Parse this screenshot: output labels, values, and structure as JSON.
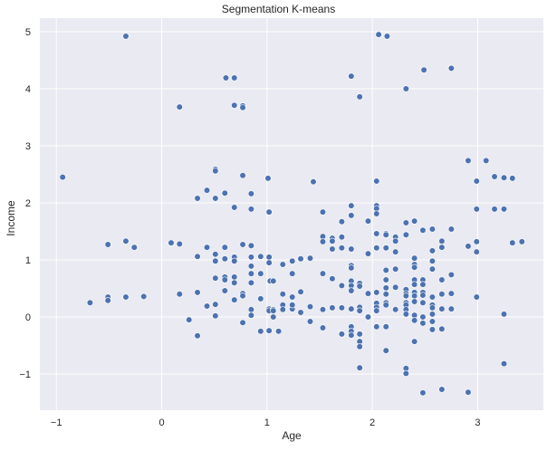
{
  "chart_data": {
    "type": "scatter",
    "title": "Segmentation K-means",
    "xlabel": "Age",
    "ylabel": "Income",
    "xlim": [
      -1.15,
      3.6
    ],
    "ylim": [
      -1.65,
      5.25
    ],
    "xticks": [
      -1,
      0,
      1,
      2,
      3
    ],
    "yticks": [
      -1,
      0,
      1,
      2,
      3,
      4,
      5
    ],
    "xtick_labels": [
      "−1",
      "0",
      "1",
      "2",
      "3"
    ],
    "ytick_labels": [
      "−1",
      "0",
      "1",
      "2",
      "3",
      "4",
      "5"
    ],
    "grid": true,
    "legend": null,
    "colors": {
      "point": "#4c72b0",
      "background": "#eaeaf2",
      "grid": "#ffffff",
      "text": "#262626"
    },
    "points": [
      [
        -0.34,
        4.92
      ],
      [
        0.17,
        3.68
      ],
      [
        0.61,
        4.19
      ],
      [
        0.69,
        4.19
      ],
      [
        0.69,
        3.71
      ],
      [
        0.77,
        3.7
      ],
      [
        0.77,
        3.67
      ],
      [
        1.8,
        4.22
      ],
      [
        1.88,
        3.86
      ],
      [
        2.06,
        4.95
      ],
      [
        2.14,
        4.92
      ],
      [
        2.32,
        4.0
      ],
      [
        2.49,
        4.33
      ],
      [
        2.75,
        4.36
      ],
      [
        -0.94,
        2.45
      ],
      [
        -0.51,
        1.27
      ],
      [
        -0.34,
        1.33
      ],
      [
        -0.26,
        1.22
      ],
      [
        0.09,
        1.3
      ],
      [
        -0.68,
        0.25
      ],
      [
        -0.51,
        0.35
      ],
      [
        -0.51,
        0.29
      ],
      [
        -0.34,
        0.35
      ],
      [
        -0.17,
        0.36
      ],
      [
        0.51,
        2.59
      ],
      [
        0.51,
        2.56
      ],
      [
        0.77,
        2.48
      ],
      [
        1.01,
        2.43
      ],
      [
        0.43,
        2.22
      ],
      [
        0.6,
        2.17
      ],
      [
        0.85,
        2.16
      ],
      [
        0.34,
        2.08
      ],
      [
        0.51,
        2.08
      ],
      [
        0.69,
        1.92
      ],
      [
        0.85,
        1.89
      ],
      [
        1.02,
        1.84
      ],
      [
        0.17,
        1.28
      ],
      [
        0.43,
        1.22
      ],
      [
        0.6,
        1.22
      ],
      [
        0.77,
        1.27
      ],
      [
        0.85,
        1.25
      ],
      [
        0.34,
        1.06
      ],
      [
        0.51,
        1.1
      ],
      [
        0.51,
        0.98
      ],
      [
        0.6,
        1.02
      ],
      [
        0.69,
        1.05
      ],
      [
        0.69,
        0.98
      ],
      [
        0.85,
        1.05
      ],
      [
        0.85,
        0.89
      ],
      [
        0.94,
        1.06
      ],
      [
        1.02,
        1.05
      ],
      [
        1.02,
        0.95
      ],
      [
        0.51,
        0.68
      ],
      [
        0.6,
        0.7
      ],
      [
        0.6,
        0.65
      ],
      [
        0.69,
        0.7
      ],
      [
        0.69,
        0.6
      ],
      [
        0.85,
        0.76
      ],
      [
        0.94,
        0.76
      ],
      [
        0.85,
        0.6
      ],
      [
        1.03,
        0.63
      ],
      [
        0.17,
        0.4
      ],
      [
        0.34,
        0.43
      ],
      [
        0.6,
        0.46
      ],
      [
        0.77,
        0.41
      ],
      [
        0.77,
        0.37
      ],
      [
        0.69,
        0.3
      ],
      [
        0.94,
        0.32
      ],
      [
        0.43,
        0.19
      ],
      [
        0.51,
        0.22
      ],
      [
        0.51,
        0.02
      ],
      [
        0.85,
        0.13
      ],
      [
        0.85,
        0.03
      ],
      [
        0.26,
        -0.05
      ],
      [
        0.77,
        -0.1
      ],
      [
        0.94,
        -0.25
      ],
      [
        1.02,
        -0.24
      ],
      [
        1.11,
        -0.25
      ],
      [
        0.34,
        -0.33
      ],
      [
        1.02,
        0.14
      ],
      [
        1.02,
        0.11
      ],
      [
        1.44,
        2.37
      ],
      [
        2.04,
        2.38
      ],
      [
        1.8,
        1.95
      ],
      [
        2.04,
        1.95
      ],
      [
        2.04,
        1.9
      ],
      [
        1.53,
        1.84
      ],
      [
        1.8,
        1.78
      ],
      [
        2.04,
        1.81
      ],
      [
        1.71,
        1.67
      ],
      [
        1.96,
        1.68
      ],
      [
        1.53,
        1.41
      ],
      [
        1.53,
        1.32
      ],
      [
        1.62,
        1.38
      ],
      [
        1.62,
        1.33
      ],
      [
        1.71,
        1.4
      ],
      [
        2.04,
        1.46
      ],
      [
        2.13,
        1.46
      ],
      [
        1.62,
        1.19
      ],
      [
        1.71,
        1.21
      ],
      [
        1.8,
        1.19
      ],
      [
        1.96,
        1.11
      ],
      [
        2.04,
        1.21
      ],
      [
        2.13,
        1.21
      ],
      [
        1.15,
        0.92
      ],
      [
        1.24,
        0.98
      ],
      [
        1.32,
        1.02
      ],
      [
        1.41,
        1.03
      ],
      [
        1.8,
        0.9
      ],
      [
        1.8,
        0.86
      ],
      [
        1.24,
        0.76
      ],
      [
        1.06,
        0.63
      ],
      [
        1.53,
        0.76
      ],
      [
        1.62,
        0.67
      ],
      [
        1.71,
        0.55
      ],
      [
        1.8,
        0.63
      ],
      [
        1.8,
        0.55
      ],
      [
        1.8,
        0.46
      ],
      [
        1.88,
        0.59
      ],
      [
        1.88,
        0.54
      ],
      [
        1.96,
        0.41
      ],
      [
        2.04,
        0.43
      ],
      [
        1.15,
        0.4
      ],
      [
        1.24,
        0.35
      ],
      [
        1.32,
        0.44
      ],
      [
        1.15,
        0.21
      ],
      [
        1.15,
        0.13
      ],
      [
        1.24,
        0.14
      ],
      [
        1.24,
        0.21
      ],
      [
        1.32,
        0.08
      ],
      [
        1.41,
        0.18
      ],
      [
        1.53,
        0.13
      ],
      [
        1.62,
        0.16
      ],
      [
        1.71,
        0.16
      ],
      [
        1.8,
        0.14
      ],
      [
        1.88,
        0.17
      ],
      [
        1.88,
        0.11
      ],
      [
        1.06,
        0.13
      ],
      [
        1.06,
        0.11
      ],
      [
        1.06,
        0.0
      ],
      [
        1.41,
        -0.08
      ],
      [
        1.53,
        -0.19
      ],
      [
        1.71,
        -0.3
      ],
      [
        1.8,
        -0.17
      ],
      [
        1.8,
        -0.25
      ],
      [
        1.8,
        -0.32
      ],
      [
        1.88,
        -0.3
      ],
      [
        1.88,
        -0.43
      ],
      [
        1.88,
        -0.52
      ],
      [
        1.96,
        0.0
      ],
      [
        2.04,
        -0.17
      ],
      [
        2.99,
        2.38
      ],
      [
        2.99,
        1.89
      ],
      [
        2.32,
        1.65
      ],
      [
        2.4,
        1.68
      ],
      [
        2.48,
        1.52
      ],
      [
        2.57,
        1.54
      ],
      [
        2.75,
        1.54
      ],
      [
        2.13,
        1.44
      ],
      [
        2.22,
        1.4
      ],
      [
        2.32,
        1.44
      ],
      [
        2.66,
        1.33
      ],
      [
        2.66,
        1.22
      ],
      [
        2.22,
        1.33
      ],
      [
        2.22,
        1.14
      ],
      [
        2.91,
        1.24
      ],
      [
        2.99,
        1.32
      ],
      [
        2.99,
        1.14
      ],
      [
        2.57,
        1.16
      ],
      [
        2.4,
        1.03
      ],
      [
        2.4,
        0.92
      ],
      [
        2.57,
        0.98
      ],
      [
        2.57,
        0.84
      ],
      [
        2.13,
        0.82
      ],
      [
        2.22,
        0.84
      ],
      [
        2.4,
        0.87
      ],
      [
        2.75,
        0.74
      ],
      [
        2.13,
        0.65
      ],
      [
        2.4,
        0.65
      ],
      [
        2.48,
        0.65
      ],
      [
        2.4,
        0.57
      ],
      [
        2.48,
        0.57
      ],
      [
        2.66,
        0.65
      ],
      [
        2.22,
        0.52
      ],
      [
        2.32,
        0.48
      ],
      [
        2.13,
        0.51
      ],
      [
        2.13,
        0.4
      ],
      [
        2.32,
        0.41
      ],
      [
        2.32,
        0.37
      ],
      [
        2.4,
        0.43
      ],
      [
        2.4,
        0.37
      ],
      [
        2.48,
        0.43
      ],
      [
        2.48,
        0.38
      ],
      [
        2.57,
        0.35
      ],
      [
        2.66,
        0.4
      ],
      [
        2.75,
        0.41
      ],
      [
        2.99,
        0.35
      ],
      [
        2.04,
        0.24
      ],
      [
        2.13,
        0.25
      ],
      [
        2.13,
        0.21
      ],
      [
        2.32,
        0.25
      ],
      [
        2.32,
        0.21
      ],
      [
        2.4,
        0.27
      ],
      [
        2.48,
        0.25
      ],
      [
        2.57,
        0.21
      ],
      [
        2.57,
        0.16
      ],
      [
        2.66,
        0.14
      ],
      [
        2.75,
        0.14
      ],
      [
        2.04,
        0.17
      ],
      [
        2.04,
        0.11
      ],
      [
        2.22,
        0.13
      ],
      [
        2.32,
        0.13
      ],
      [
        2.57,
        0.05
      ],
      [
        2.4,
        0.03
      ],
      [
        2.48,
        0.0
      ],
      [
        2.32,
        0.05
      ],
      [
        2.4,
        -0.06
      ],
      [
        2.48,
        -0.11
      ],
      [
        2.57,
        -0.08
      ],
      [
        2.13,
        -0.17
      ],
      [
        2.57,
        -0.22
      ],
      [
        2.66,
        -0.21
      ],
      [
        2.4,
        -0.43
      ],
      [
        2.13,
        -0.59
      ],
      [
        1.88,
        -0.89
      ],
      [
        2.32,
        -0.9
      ],
      [
        2.32,
        -0.99
      ],
      [
        2.48,
        -1.33
      ],
      [
        2.66,
        -1.27
      ],
      [
        2.91,
        -1.32
      ],
      [
        3.25,
        -0.82
      ],
      [
        2.91,
        2.74
      ],
      [
        3.08,
        2.74
      ],
      [
        3.16,
        2.46
      ],
      [
        3.25,
        2.44
      ],
      [
        3.33,
        2.43
      ],
      [
        3.16,
        1.89
      ],
      [
        3.25,
        1.89
      ],
      [
        3.33,
        1.3
      ],
      [
        3.42,
        1.32
      ],
      [
        3.25,
        0.05
      ]
    ]
  }
}
